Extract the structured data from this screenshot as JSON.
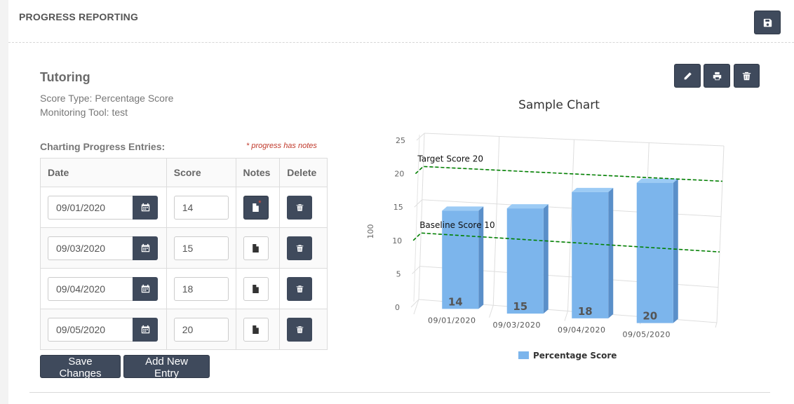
{
  "header": {
    "title": "PROGRESS REPORTING",
    "save_icon": "floppy-disk-icon"
  },
  "section": {
    "title": "Tutoring",
    "score_type": "Score Type: Percentage Score",
    "monitoring_tool": "Monitoring Tool: test",
    "toolbar_icons": [
      "pencil-icon",
      "printer-icon",
      "trash-icon"
    ]
  },
  "entries": {
    "label": "Charting Progress Entries:",
    "notes_hint": "* progress has notes",
    "columns": {
      "date": "Date",
      "score": "Score",
      "notes": "Notes",
      "delete": "Delete"
    },
    "rows": [
      {
        "date": "09/01/2020",
        "score": "14",
        "has_notes": true
      },
      {
        "date": "09/03/2020",
        "score": "15",
        "has_notes": false
      },
      {
        "date": "09/04/2020",
        "score": "18",
        "has_notes": false
      },
      {
        "date": "09/05/2020",
        "score": "20",
        "has_notes": false
      }
    ]
  },
  "buttons": {
    "save_changes": "Save Changes",
    "add_new_entry": "Add New Entry"
  },
  "colors": {
    "primary": "#3f4a5c",
    "bar": "#7cb5ec",
    "goal_line": "#008000",
    "note_marker": "#e74c3c"
  },
  "chart_data": {
    "type": "bar",
    "title": "Sample Chart",
    "ylabel": "100",
    "xlabel": "",
    "categories": [
      "09/01/2020",
      "09/03/2020",
      "09/04/2020",
      "09/05/2020"
    ],
    "series": [
      {
        "name": "Percentage Score",
        "values": [
          14,
          15,
          18,
          20
        ]
      }
    ],
    "data_labels": [
      "14",
      "15",
      "18",
      "20"
    ],
    "y_ticks": [
      0,
      5,
      10,
      15,
      20,
      25
    ],
    "ylim": [
      0,
      25
    ],
    "reference_lines": [
      {
        "label": "Target Score 20",
        "value": 20
      },
      {
        "label": "Baseline Score 10",
        "value": 10
      }
    ],
    "grid": true,
    "legend": "bottom-center"
  }
}
